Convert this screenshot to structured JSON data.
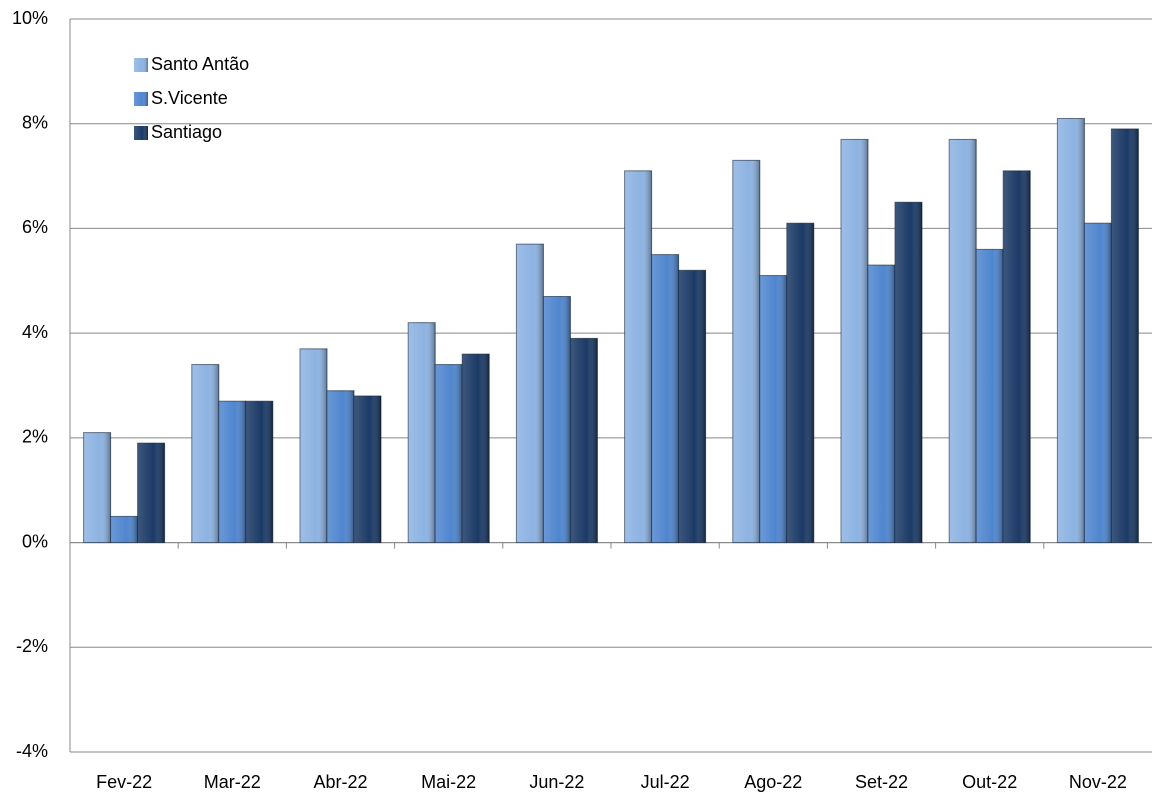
{
  "chart_data": {
    "type": "bar",
    "categories": [
      "Fev-22",
      "Mar-22",
      "Abr-22",
      "Mai-22",
      "Jun-22",
      "Jul-22",
      "Ago-22",
      "Set-22",
      "Out-22",
      "Nov-22"
    ],
    "series": [
      {
        "name": "Santo Antão",
        "color": "#8db3e2",
        "values": [
          2.1,
          3.4,
          3.7,
          4.2,
          5.7,
          7.1,
          7.3,
          7.7,
          7.7,
          8.1
        ]
      },
      {
        "name": "S.Vicente",
        "color": "#4f86cf",
        "values": [
          0.5,
          2.7,
          2.9,
          3.4,
          4.7,
          5.5,
          5.1,
          5.3,
          5.6,
          6.1
        ]
      },
      {
        "name": "Santiago",
        "color": "#1b3a66",
        "values": [
          1.9,
          2.7,
          2.8,
          3.6,
          3.9,
          5.2,
          6.1,
          6.5,
          7.1,
          7.9
        ]
      }
    ],
    "ylim": [
      -4,
      10
    ],
    "yticks": [
      {
        "value": -4,
        "label": "-4%"
      },
      {
        "value": -2,
        "label": "-2%"
      },
      {
        "value": 0,
        "label": "0%"
      },
      {
        "value": 2,
        "label": "2%"
      },
      {
        "value": 4,
        "label": "4%"
      },
      {
        "value": 6,
        "label": "6%"
      },
      {
        "value": 8,
        "label": "8%"
      },
      {
        "value": 10,
        "label": "10%"
      }
    ],
    "grid": true,
    "legend": "top-left"
  }
}
